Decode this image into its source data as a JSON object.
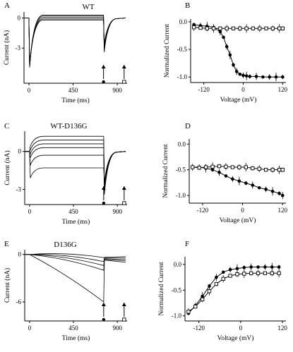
{
  "chart_data": [
    {
      "panel": "A",
      "type": "line",
      "title": "WT",
      "xlabel": "Time (ms)",
      "ylabel": "Current (nA)",
      "xlim": [
        -50,
        1000
      ],
      "ylim": [
        -6.5,
        0.6
      ],
      "xticks": [
        0,
        450,
        900
      ],
      "yticks": [
        0,
        -3
      ],
      "traces_plateau": [
        0.3,
        0.2,
        0.05,
        -0.1,
        -0.2
      ],
      "transient_peak": -4.9,
      "arrows_at_ms": [
        760,
        970
      ],
      "markers": [
        {
          "symbol": "filled-circle",
          "x": 760
        },
        {
          "symbol": "open-square",
          "x": 970
        }
      ]
    },
    {
      "panel": "B",
      "type": "line",
      "xlabel": "Voltage (mV)",
      "ylabel": "Normalized Current",
      "xlim": [
        -160,
        130
      ],
      "ylim": [
        -1.1,
        0.05
      ],
      "xticks": [
        -120,
        0,
        120
      ],
      "yticks": [
        0.0,
        -0.5,
        -1.0
      ],
      "series": [
        {
          "marker": "filled-circle",
          "x": [
            -150,
            -130,
            -110,
            -90,
            -70,
            -60,
            -50,
            -40,
            -30,
            -20,
            -10,
            0,
            10,
            20,
            40,
            60,
            80,
            100,
            120
          ],
          "y": [
            -0.05,
            -0.07,
            -0.08,
            -0.1,
            -0.18,
            -0.28,
            -0.45,
            -0.6,
            -0.78,
            -0.9,
            -0.95,
            -0.97,
            -0.98,
            -0.99,
            -0.99,
            -1.0,
            -1.0,
            -1.0,
            -1.0
          ]
        },
        {
          "marker": "open-square",
          "x": [
            -150,
            -130,
            -110,
            -90,
            -70,
            -50,
            -30,
            -10,
            10,
            30,
            50,
            70,
            90,
            110,
            120
          ],
          "y": [
            -0.1,
            -0.11,
            -0.12,
            -0.12,
            -0.12,
            -0.12,
            -0.12,
            -0.12,
            -0.12,
            -0.12,
            -0.12,
            -0.12,
            -0.12,
            -0.12,
            -0.12
          ]
        }
      ]
    },
    {
      "panel": "C",
      "type": "line",
      "title": "WT-D136G",
      "xlabel": "Time (ms)",
      "ylabel": "Current (nA)",
      "xlim": [
        -50,
        1000
      ],
      "ylim": [
        -4.2,
        1.6
      ],
      "xticks": [
        0,
        450,
        900
      ],
      "yticks": [
        0,
        -3
      ],
      "traces_plateau": [
        1.2,
        0.9,
        0.6,
        0.3,
        -0.3,
        -1.3
      ],
      "arrows_at_ms": [
        760,
        970
      ],
      "markers": [
        {
          "symbol": "filled-circle",
          "x": 760
        },
        {
          "symbol": "open-square",
          "x": 970
        }
      ]
    },
    {
      "panel": "D",
      "type": "line",
      "xlabel": "Voltage (mV)",
      "ylabel": "Normalized Current",
      "xlim": [
        -160,
        130
      ],
      "ylim": [
        -1.15,
        0.1
      ],
      "xticks": [
        -120,
        0,
        120
      ],
      "yticks": [
        0.0,
        -0.5,
        -1.0
      ],
      "series": [
        {
          "marker": "filled-circle",
          "x": [
            -150,
            -130,
            -110,
            -90,
            -70,
            -50,
            -30,
            -10,
            10,
            30,
            50,
            70,
            90,
            110,
            120
          ],
          "y": [
            -0.45,
            -0.45,
            -0.47,
            -0.5,
            -0.55,
            -0.62,
            -0.68,
            -0.72,
            -0.76,
            -0.8,
            -0.85,
            -0.88,
            -0.92,
            -0.96,
            -1.0
          ]
        },
        {
          "marker": "open-square",
          "x": [
            -150,
            -130,
            -110,
            -90,
            -70,
            -50,
            -30,
            -10,
            10,
            30,
            50,
            70,
            90,
            110,
            120
          ],
          "y": [
            -0.45,
            -0.46,
            -0.45,
            -0.44,
            -0.43,
            -0.44,
            -0.45,
            -0.45,
            -0.45,
            -0.47,
            -0.48,
            -0.5,
            -0.5,
            -0.5,
            -0.5
          ]
        }
      ]
    },
    {
      "panel": "E",
      "type": "line",
      "title": "D136G",
      "xlabel": "Time (ms)",
      "ylabel": "Current (nA)",
      "xlim": [
        -50,
        1000
      ],
      "ylim": [
        -8.4,
        0.6
      ],
      "xticks": [
        0,
        450,
        900
      ],
      "yticks": [
        0,
        -6
      ],
      "traces_end": [
        -0.4,
        -0.9,
        -1.4,
        -2.0,
        -6.0
      ],
      "arrows_at_ms": [
        760,
        970
      ],
      "markers": [
        {
          "symbol": "filled-circle",
          "x": 760
        },
        {
          "symbol": "open-square",
          "x": 970
        }
      ]
    },
    {
      "panel": "F",
      "type": "line",
      "xlabel": "Voltage (mV)",
      "ylabel": "Normalized Current",
      "xlim": [
        -160,
        130
      ],
      "ylim": [
        -1.1,
        0.15
      ],
      "xticks": [
        -120,
        0,
        120
      ],
      "yticks": [
        0.0,
        -0.5,
        -1.0
      ],
      "series": [
        {
          "marker": "filled-circle",
          "x": [
            -150,
            -130,
            -110,
            -90,
            -70,
            -50,
            -30,
            -10,
            10,
            30,
            50,
            70,
            90,
            110
          ],
          "y": [
            -0.95,
            -0.8,
            -0.62,
            -0.42,
            -0.25,
            -0.15,
            -0.1,
            -0.08,
            -0.06,
            -0.05,
            -0.05,
            -0.05,
            -0.05,
            -0.05
          ]
        },
        {
          "marker": "open-square",
          "x": [
            -150,
            -130,
            -110,
            -90,
            -70,
            -50,
            -30,
            -10,
            10,
            30,
            50,
            70,
            90,
            110
          ],
          "y": [
            -0.92,
            -0.82,
            -0.68,
            -0.52,
            -0.38,
            -0.28,
            -0.22,
            -0.19,
            -0.18,
            -0.17,
            -0.17,
            -0.17,
            -0.17,
            -0.17
          ]
        }
      ]
    }
  ]
}
